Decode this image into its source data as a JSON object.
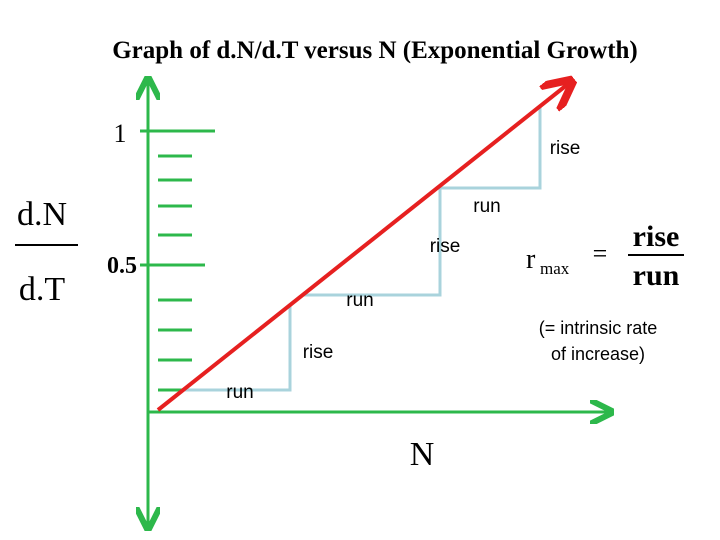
{
  "title": "Graph of d.N/d.T versus N (Exponential Growth)",
  "y_label": {
    "numerator": "d.N",
    "denominator": "d.T"
  },
  "x_label": "N",
  "tick_labels": [
    "1",
    "0.5"
  ],
  "step_labels": [
    "rise",
    "run",
    "rise",
    "run",
    "rise",
    "run"
  ],
  "formula": {
    "symbol": "r",
    "subscript": "max",
    "equals": "=",
    "numerator": "rise",
    "denominator": "run"
  },
  "note": [
    "(= intrinsic rate",
    "of increase)"
  ]
}
